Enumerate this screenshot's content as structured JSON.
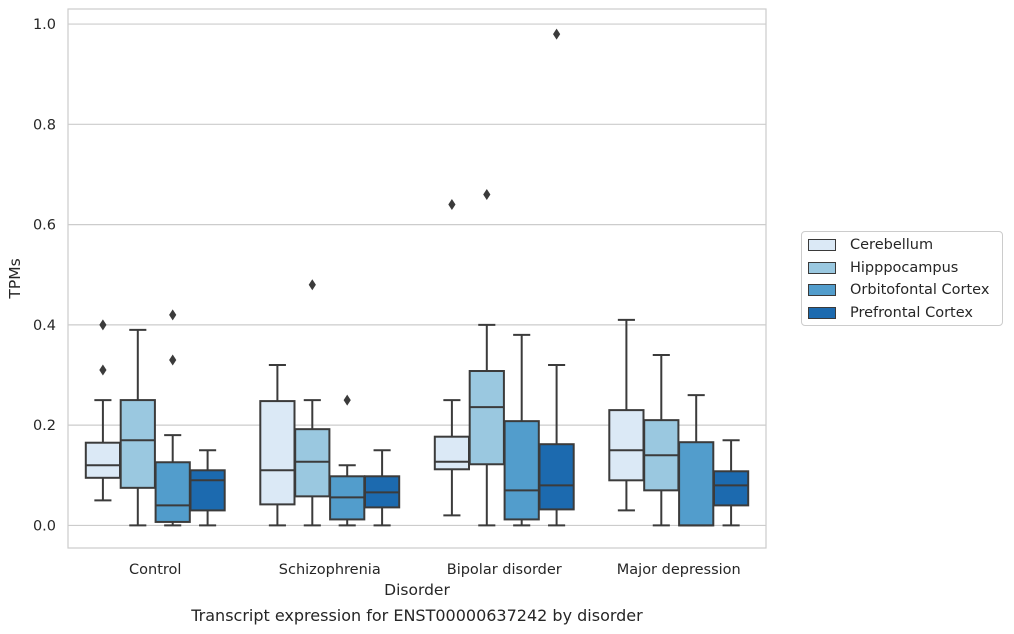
{
  "caption": "Transcript expression for ENST00000637242 by disorder",
  "chart_data": {
    "type": "boxplot",
    "xlabel": "Disorder",
    "ylabel": "TPMs",
    "ylim": [
      -0.045,
      1.03
    ],
    "yticks": [
      0.0,
      0.2,
      0.4,
      0.6,
      0.8,
      1.0
    ],
    "ytick_labels": [
      "0.0",
      "0.2",
      "0.4",
      "0.6",
      "0.8",
      "1.0"
    ],
    "grid": true,
    "legend_position": "right",
    "categories": [
      "Control",
      "Schizophrenia",
      "Bipolar disorder",
      "Major depression"
    ],
    "series": [
      {
        "name": "Cerebellum",
        "color": "#dbe9f6",
        "boxes": [
          {
            "whislo": 0.05,
            "q1": 0.095,
            "med": 0.12,
            "q3": 0.165,
            "whishi": 0.25,
            "fliers": [
              0.31,
              0.4
            ]
          },
          {
            "whislo": 0.0,
            "q1": 0.042,
            "med": 0.11,
            "q3": 0.248,
            "whishi": 0.32,
            "fliers": []
          },
          {
            "whislo": 0.02,
            "q1": 0.112,
            "med": 0.127,
            "q3": 0.177,
            "whishi": 0.25,
            "fliers": [
              0.64
            ]
          },
          {
            "whislo": 0.03,
            "q1": 0.09,
            "med": 0.15,
            "q3": 0.23,
            "whishi": 0.41,
            "fliers": []
          }
        ]
      },
      {
        "name": "Hipppocampus",
        "color": "#9ac8e0",
        "boxes": [
          {
            "whislo": 0.0,
            "q1": 0.075,
            "med": 0.17,
            "q3": 0.25,
            "whishi": 0.39,
            "fliers": []
          },
          {
            "whislo": 0.0,
            "q1": 0.058,
            "med": 0.127,
            "q3": 0.192,
            "whishi": 0.25,
            "fliers": [
              0.48
            ]
          },
          {
            "whislo": 0.0,
            "q1": 0.122,
            "med": 0.236,
            "q3": 0.308,
            "whishi": 0.4,
            "fliers": [
              0.66
            ]
          },
          {
            "whislo": 0.0,
            "q1": 0.07,
            "med": 0.14,
            "q3": 0.21,
            "whishi": 0.34,
            "fliers": []
          }
        ]
      },
      {
        "name": "Orbitofontal Cortex",
        "color": "#529dcc",
        "boxes": [
          {
            "whislo": 0.0,
            "q1": 0.007,
            "med": 0.04,
            "q3": 0.126,
            "whishi": 0.18,
            "fliers": [
              0.33,
              0.42
            ]
          },
          {
            "whislo": 0.0,
            "q1": 0.012,
            "med": 0.056,
            "q3": 0.098,
            "whishi": 0.12,
            "fliers": [
              0.25
            ]
          },
          {
            "whislo": 0.0,
            "q1": 0.012,
            "med": 0.07,
            "q3": 0.208,
            "whishi": 0.38,
            "fliers": []
          },
          {
            "whislo": 0.0,
            "q1": 0.0,
            "med": 0.0,
            "q3": 0.166,
            "whishi": 0.26,
            "fliers": []
          }
        ]
      },
      {
        "name": "Prefrontal Cortex",
        "color": "#1c6aaf",
        "boxes": [
          {
            "whislo": 0.0,
            "q1": 0.03,
            "med": 0.09,
            "q3": 0.11,
            "whishi": 0.15,
            "fliers": []
          },
          {
            "whislo": 0.0,
            "q1": 0.036,
            "med": 0.066,
            "q3": 0.098,
            "whishi": 0.15,
            "fliers": []
          },
          {
            "whislo": 0.0,
            "q1": 0.032,
            "med": 0.08,
            "q3": 0.162,
            "whishi": 0.32,
            "fliers": [
              0.98
            ]
          },
          {
            "whislo": 0.0,
            "q1": 0.04,
            "med": 0.08,
            "q3": 0.108,
            "whishi": 0.17,
            "fliers": []
          }
        ]
      }
    ]
  }
}
